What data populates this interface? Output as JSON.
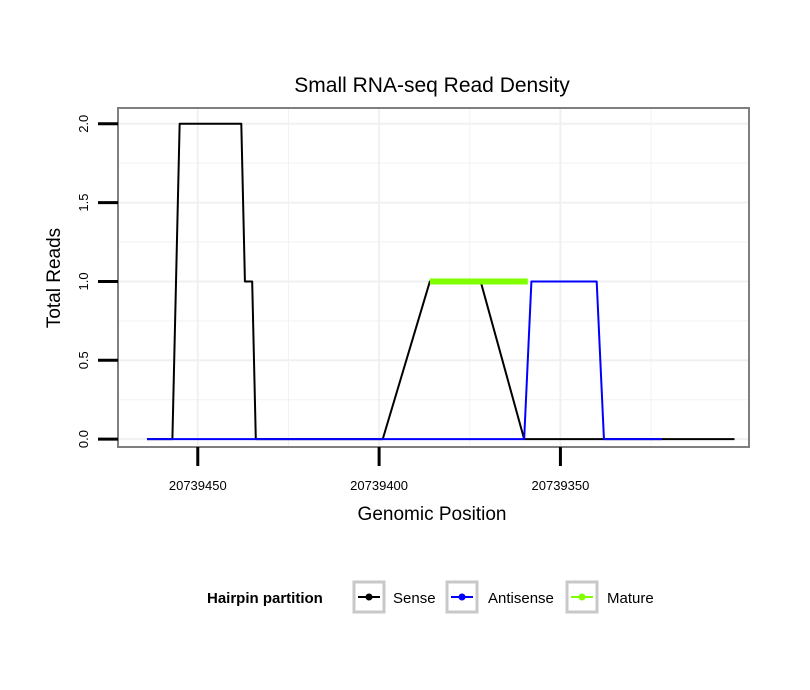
{
  "chart_data": {
    "type": "line",
    "title": "Small RNA-seq Read Density",
    "xlabel": "Genomic Position",
    "ylabel": "Total Reads",
    "xlim": [
      20739472,
      20739298
    ],
    "x_reversed": true,
    "ylim": [
      -0.05,
      2.1
    ],
    "x_ticks": [
      20739450,
      20739400,
      20739350
    ],
    "x_tick_labels": [
      "20739450",
      "20739400",
      "20739350"
    ],
    "y_ticks": [
      0,
      0.5,
      1,
      1.5,
      2
    ],
    "y_tick_labels": [
      "0.0",
      "0.5",
      "1.0",
      "1.5",
      "2.0"
    ],
    "grid": true,
    "legend": {
      "title": "Hairpin partition",
      "position": "bottom",
      "entries": [
        "Sense",
        "Antisense",
        "Mature"
      ]
    },
    "series": [
      {
        "name": "Sense",
        "color": "#000000",
        "x": [
          20739464,
          20739457,
          20739455,
          20739438,
          20739437,
          20739435,
          20739434,
          20739417,
          20739399,
          20739386,
          20739372,
          20739360,
          20739338,
          20739322,
          20739302
        ],
        "y": [
          0,
          0,
          2,
          2,
          1,
          1,
          0,
          0,
          0,
          1,
          1,
          0,
          0,
          0,
          0
        ]
      },
      {
        "name": "Antisense",
        "color": "#0000ff",
        "x": [
          20739464,
          20739457,
          20739434,
          20739417,
          20739399,
          20739386,
          20739372,
          20739360,
          20739358,
          20739340,
          20739338,
          20739322
        ],
        "y": [
          0,
          0,
          0,
          0,
          0,
          0,
          0,
          0,
          1,
          1,
          0,
          0
        ]
      },
      {
        "name": "Mature",
        "color": "#7fff00",
        "x": [
          20739386,
          20739359
        ],
        "y": [
          1,
          1
        ]
      }
    ]
  }
}
